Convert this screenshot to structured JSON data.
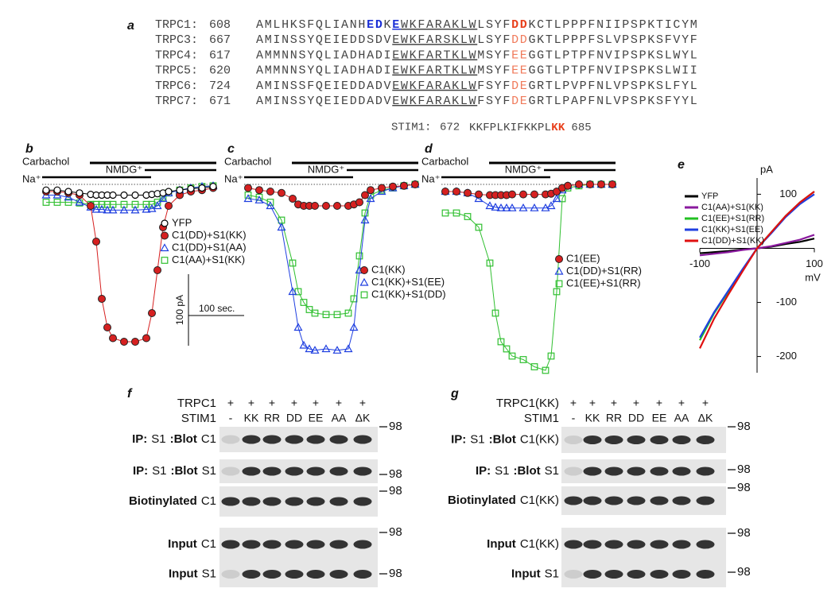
{
  "figure_a": {
    "panel_label": "a",
    "rows": [
      {
        "name": "TRPC1:",
        "start": 608,
        "segments": [
          {
            "text": "AMLHKSFQLIANH"
          },
          {
            "text": "ED",
            "color": "#1a2fd6",
            "bold": true
          },
          {
            "text": "K"
          },
          {
            "text": "E",
            "color": "#1a2fd6",
            "bold": true,
            "underline": true
          },
          {
            "text": "WKFARAKLW",
            "underline": true
          },
          {
            "text": "LSYF"
          },
          {
            "text": "DD",
            "color": "#e8401c",
            "bold": true
          },
          {
            "text": "KCTLPPPFNIIPSPKTICYM"
          }
        ]
      },
      {
        "name": "TRPC3:",
        "start": 667,
        "segments": [
          {
            "text": "AMINSSYQEIEDDSDV"
          },
          {
            "text": "EWKFARSKLW",
            "underline": true
          },
          {
            "text": "LSYF"
          },
          {
            "text": "DD",
            "color": "#f07a5a"
          },
          {
            "text": "GKTLPPPFSLVPSPKSFVYF"
          }
        ]
      },
      {
        "name": "TRPC4:",
        "start": 617,
        "segments": [
          {
            "text": "AMMNNSYQLIADHADI"
          },
          {
            "text": "EWKFARTKLW",
            "underline": true
          },
          {
            "text": "MSYF"
          },
          {
            "text": "EE",
            "color": "#f07a5a"
          },
          {
            "text": "GGTLPTPFNVIPSPKSLWYL"
          }
        ]
      },
      {
        "name": "TRPC5:",
        "start": 620,
        "segments": [
          {
            "text": "AMMNNSYQLIADHADI"
          },
          {
            "text": "EWKFARTKLW",
            "underline": true
          },
          {
            "text": "MSYF"
          },
          {
            "text": "EE",
            "color": "#f07a5a"
          },
          {
            "text": "GGTLPTPFNVIPSPKSLWII"
          }
        ]
      },
      {
        "name": "TRPC6:",
        "start": 724,
        "segments": [
          {
            "text": "AMINSSFQEIEDDADV"
          },
          {
            "text": "EWKFARAKLW",
            "underline": true
          },
          {
            "text": "FSYF"
          },
          {
            "text": "DE",
            "color": "#f07a5a"
          },
          {
            "text": "GRTLPVPFNLVPSPKSLFYL"
          }
        ]
      },
      {
        "name": "TRPC7:",
        "start": 671,
        "segments": [
          {
            "text": "AMINSSYQEIEDDADV"
          },
          {
            "text": "EWKFARAKLW",
            "underline": true
          },
          {
            "text": "FSYF"
          },
          {
            "text": "DE",
            "color": "#f07a5a"
          },
          {
            "text": "GRTLPAPFNLVPSPKSFYYL"
          }
        ]
      }
    ],
    "stim1": {
      "name": "STIM1:",
      "start": 672,
      "segments": [
        {
          "text": "KKFPLKIFKKPL"
        },
        {
          "text": "KK",
          "color": "#e8401c",
          "bold": true
        }
      ],
      "end": 685
    }
  },
  "chart_data": [
    {
      "type": "line",
      "panel_label": "b",
      "agonist": "Carbachol",
      "solution": "NMDG⁺",
      "bath": "Na⁺",
      "x": [
        0,
        20,
        40,
        60,
        80,
        90,
        100,
        110,
        120,
        140,
        160,
        180,
        190,
        200,
        210,
        220,
        240,
        260,
        280,
        300
      ],
      "series": [
        {
          "name": "YFP",
          "color": "#000000",
          "marker": "circle-open",
          "values": [
            -8,
            -8,
            -10,
            -12,
            -14,
            -15,
            -15,
            -15,
            -15,
            -15,
            -15,
            -15,
            -14,
            -13,
            -12,
            -10,
            -8,
            -6,
            -5,
            -3
          ]
        },
        {
          "name": "C1(DD)+S1(KK)",
          "color": "#d62020",
          "marker": "circle-filled",
          "values": [
            -10,
            -10,
            -12,
            -15,
            -30,
            -80,
            -160,
            -200,
            -215,
            -220,
            -220,
            -215,
            -180,
            -120,
            -60,
            -30,
            -15,
            -10,
            -8,
            -5
          ]
        },
        {
          "name": "C1(DD)+S1(AA)",
          "color": "#1f3fe0",
          "marker": "triangle-open",
          "values": [
            -15,
            -15,
            -18,
            -25,
            -32,
            -35,
            -35,
            -36,
            -36,
            -36,
            -36,
            -35,
            -34,
            -30,
            -20,
            -12,
            -8,
            -5,
            -3,
            -2
          ]
        },
        {
          "name": "C1(AA)+S1(KK)",
          "color": "#2fbf2f",
          "marker": "square-open",
          "values": [
            -25,
            -25,
            -25,
            -26,
            -28,
            -28,
            -28,
            -28,
            -28,
            -28,
            -28,
            -28,
            -28,
            -25,
            -18,
            -12,
            -8,
            -5,
            -3,
            -2
          ]
        }
      ],
      "scale_bar": {
        "y": {
          "value": 100,
          "label": "100 pA"
        },
        "x": {
          "value": 100,
          "label": "100 sec."
        }
      }
    },
    {
      "type": "line",
      "panel_label": "c",
      "agonist": "Carbachol",
      "solution": "NMDG⁺",
      "bath": "Na⁺",
      "x": [
        0,
        20,
        40,
        60,
        80,
        90,
        100,
        110,
        120,
        140,
        160,
        180,
        190,
        200,
        210,
        220,
        240,
        260,
        280,
        300
      ],
      "series": [
        {
          "name": "C1(KK)",
          "color": "#d62020",
          "marker": "circle-filled",
          "values": [
            -5,
            -8,
            -10,
            -12,
            -20,
            -28,
            -30,
            -30,
            -30,
            -30,
            -30,
            -30,
            -28,
            -25,
            -15,
            -8,
            -5,
            -3,
            -2,
            0
          ]
        },
        {
          "name": "C1(KK)+S1(EE)",
          "color": "#1f3fe0",
          "marker": "triangle-open",
          "values": [
            -20,
            -22,
            -30,
            -60,
            -150,
            -200,
            -225,
            -230,
            -232,
            -230,
            -232,
            -230,
            -200,
            -120,
            -50,
            -20,
            -10,
            -5,
            -2,
            0
          ]
        },
        {
          "name": "C1(KK)+S1(DD)",
          "color": "#2fbf2f",
          "marker": "square-open",
          "values": [
            -15,
            -18,
            -25,
            -50,
            -110,
            -150,
            -165,
            -175,
            -180,
            -182,
            -182,
            -180,
            -160,
            -100,
            -40,
            -15,
            -8,
            -5,
            -2,
            0
          ]
        }
      ]
    },
    {
      "type": "line",
      "panel_label": "d",
      "agonist": "Carbachol",
      "solution": "NMDG⁺",
      "bath": "Na⁺",
      "x": [
        0,
        20,
        40,
        60,
        80,
        90,
        100,
        110,
        120,
        140,
        160,
        180,
        190,
        200,
        210,
        220,
        240,
        260,
        280,
        300
      ],
      "series": [
        {
          "name": "C1(EE)",
          "color": "#d62020",
          "marker": "circle-filled",
          "values": [
            -10,
            -10,
            -12,
            -14,
            -15,
            -15,
            -15,
            -15,
            -14,
            -14,
            -14,
            -14,
            -13,
            -10,
            -5,
            -2,
            0,
            0,
            0,
            0
          ]
        },
        {
          "name": "C1(DD)+S1(RR)",
          "color": "#1f3fe0",
          "marker": "triangle-open",
          "values": [
            -10,
            -10,
            -12,
            -20,
            -30,
            -32,
            -33,
            -33,
            -33,
            -33,
            -33,
            -33,
            -30,
            -20,
            -8,
            -2,
            0,
            0,
            0,
            0
          ]
        },
        {
          "name": "C1(EE)+S1(RR)",
          "color": "#2fbf2f",
          "marker": "square-open",
          "values": [
            -40,
            -40,
            -45,
            -60,
            -110,
            -180,
            -220,
            -230,
            -240,
            -245,
            -255,
            -260,
            -240,
            -150,
            -20,
            -5,
            -2,
            0,
            0,
            0
          ]
        }
      ]
    },
    {
      "type": "line",
      "panel_label": "e",
      "xlabel": "mV",
      "ylabel": "pA",
      "x": [
        -100,
        -75,
        -50,
        -25,
        0,
        25,
        50,
        75,
        100
      ],
      "xlim": [
        -100,
        100
      ],
      "ylim": [
        -230,
        130
      ],
      "xticks": [
        -100,
        100
      ],
      "yticks": [
        100,
        -100,
        -200
      ],
      "series": [
        {
          "name": "YFP",
          "color": "#000000",
          "values": [
            -9,
            -7,
            -5,
            -2,
            0,
            3,
            8,
            12,
            18
          ]
        },
        {
          "name": "C1(AA)+S1(KK)",
          "color": "#8a1a9e",
          "values": [
            -13,
            -10,
            -7,
            -3,
            0,
            4,
            10,
            16,
            25
          ]
        },
        {
          "name": "C1(EE)+S1(RR)",
          "color": "#22c022",
          "values": [
            -170,
            -120,
            -80,
            -40,
            0,
            30,
            60,
            85,
            105
          ]
        },
        {
          "name": "C1(KK)+S1(EE)",
          "color": "#1f3fe0",
          "values": [
            -165,
            -118,
            -78,
            -38,
            0,
            28,
            58,
            82,
            100
          ]
        },
        {
          "name": "C1(DD)+S1(KK)",
          "color": "#e01010",
          "values": [
            -185,
            -130,
            -85,
            -42,
            0,
            30,
            60,
            85,
            105
          ]
        }
      ]
    }
  ],
  "panel_f": {
    "panel_label": "f",
    "header": [
      {
        "label": "TRPC1",
        "lanes": [
          "+",
          "+",
          "+",
          "+",
          "+",
          "+",
          "+"
        ]
      },
      {
        "label": "STIM1",
        "lanes": [
          "-",
          "KK",
          "RR",
          "DD",
          "EE",
          "AA",
          "ΔK"
        ]
      }
    ],
    "blots": [
      {
        "label": [
          {
            "text": "IP:",
            "bold": true
          },
          {
            "text": "S1"
          },
          {
            "text": ":Blot",
            "bold": true
          },
          {
            "text": "C1"
          }
        ],
        "marker": 98
      },
      {
        "label": [
          {
            "text": "IP:",
            "bold": true
          },
          {
            "text": "S1"
          },
          {
            "text": ":Blot",
            "bold": true
          },
          {
            "text": "S1"
          }
        ],
        "marker": 98
      },
      {
        "label": [
          {
            "text": "Biotinylated",
            "bold": true
          },
          {
            "text": "C1"
          }
        ],
        "marker": 98
      },
      {
        "label": [
          {
            "text": "Input",
            "bold": true
          },
          {
            "text": "C1"
          }
        ],
        "marker": 98
      },
      {
        "label": [
          {
            "text": "Input",
            "bold": true
          },
          {
            "text": "S1"
          }
        ],
        "marker": 98
      }
    ]
  },
  "panel_g": {
    "panel_label": "g",
    "header": [
      {
        "label": "TRPC1(KK)",
        "lanes": [
          "+",
          "+",
          "+",
          "+",
          "+",
          "+",
          "+"
        ]
      },
      {
        "label": "STIM1",
        "lanes": [
          "-",
          "KK",
          "RR",
          "DD",
          "EE",
          "AA",
          "ΔK"
        ]
      }
    ],
    "blots": [
      {
        "label": [
          {
            "text": "IP:",
            "bold": true
          },
          {
            "text": "S1"
          },
          {
            "text": ":Blot",
            "bold": true
          },
          {
            "text": "C1(KK)"
          }
        ],
        "marker": 98
      },
      {
        "label": [
          {
            "text": "IP:",
            "bold": true
          },
          {
            "text": "S1"
          },
          {
            "text": ":Blot",
            "bold": true
          },
          {
            "text": "S1"
          }
        ],
        "marker": 98
      },
      {
        "label": [
          {
            "text": "Biotinylated",
            "bold": true
          },
          {
            "text": "C1(KK)"
          }
        ],
        "marker": 98
      },
      {
        "label": [
          {
            "text": "Input",
            "bold": true
          },
          {
            "text": "C1(KK)"
          }
        ],
        "marker": 98
      },
      {
        "label": [
          {
            "text": "Input",
            "bold": true
          },
          {
            "text": "S1"
          }
        ],
        "marker": 98
      }
    ]
  }
}
